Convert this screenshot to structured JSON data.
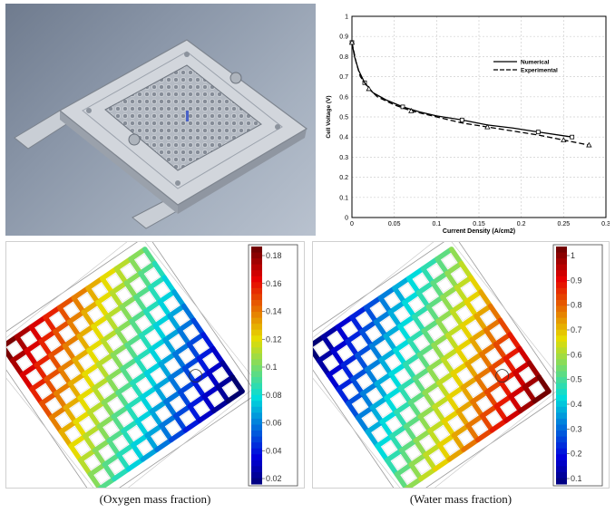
{
  "chart_data": {
    "type": "line",
    "xlabel": "Current Density (A/cm2)",
    "ylabel": "Cell Voltage (V)",
    "xlim": [
      0,
      0.3
    ],
    "ylim": [
      0,
      1
    ],
    "x_ticks": [
      "0",
      "0.05",
      "0.1",
      "0.15",
      "0.2",
      "0.25",
      "0.3"
    ],
    "y_ticks": [
      "0",
      "0.1",
      "0.2",
      "0.3",
      "0.4",
      "0.5",
      "0.6",
      "0.7",
      "0.8",
      "0.9",
      "1"
    ],
    "grid": true,
    "legend_position": "upper-right",
    "series": [
      {
        "name": "Numerical",
        "style": "solid",
        "x": [
          0,
          0.003,
          0.008,
          0.015,
          0.025,
          0.04,
          0.06,
          0.08,
          0.1,
          0.13,
          0.16,
          0.19,
          0.22,
          0.26
        ],
        "y": [
          0.87,
          0.8,
          0.73,
          0.67,
          0.62,
          0.585,
          0.55,
          0.525,
          0.505,
          0.485,
          0.46,
          0.445,
          0.425,
          0.4
        ]
      },
      {
        "name": "Experimental",
        "style": "dashed",
        "x": [
          0,
          0.005,
          0.01,
          0.02,
          0.03,
          0.05,
          0.07,
          0.1,
          0.13,
          0.16,
          0.19,
          0.22,
          0.25,
          0.28
        ],
        "y": [
          0.87,
          0.77,
          0.7,
          0.64,
          0.6,
          0.56,
          0.53,
          0.5,
          0.47,
          0.45,
          0.43,
          0.41,
          0.385,
          0.36
        ]
      }
    ]
  },
  "oxygen_panel": {
    "caption": "(Oxygen mass fraction)",
    "colorbar_ticks": [
      "0.18",
      "0.16",
      "0.14",
      "0.12",
      "0.1",
      "0.08",
      "0.06",
      "0.04",
      "0.02"
    ]
  },
  "water_panel": {
    "caption": "(Water mass fraction)",
    "colorbar_ticks": [
      "1",
      "0.9",
      "0.8",
      "0.7",
      "0.6",
      "0.5",
      "0.4",
      "0.3",
      "0.2",
      "0.1"
    ]
  },
  "colors": {
    "numerical_line": "#000000",
    "experimental_line": "#000000",
    "grid": "#cfcfcf",
    "cad_plate": "#c7ccd3"
  }
}
